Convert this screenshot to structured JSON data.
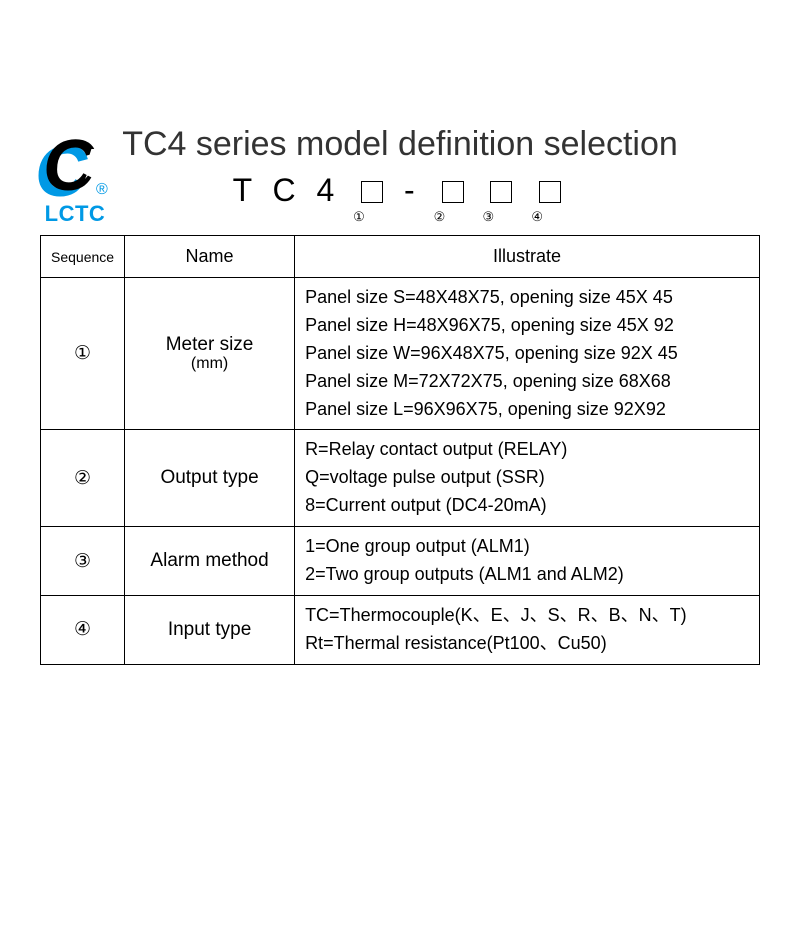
{
  "logo": {
    "text": "LCTC",
    "reg": "®"
  },
  "title": "TC4 series model definition selection",
  "model": {
    "prefix": "T C 4",
    "dash": "-",
    "subs": [
      "①",
      "②",
      "③",
      "④"
    ]
  },
  "table": {
    "headers": [
      "Sequence",
      "Name",
      "Illustrate"
    ],
    "rows": [
      {
        "seq": "①",
        "name": "Meter size",
        "name_sub": "(mm)",
        "lines": [
          "Panel size S=48X48X75, opening size 45X 45",
          "Panel size H=48X96X75, opening size 45X 92",
          "Panel size W=96X48X75, opening size 92X 45",
          "Panel size M=72X72X75, opening size 68X68",
          "Panel size L=96X96X75, opening size 92X92"
        ]
      },
      {
        "seq": "②",
        "name": "Output type",
        "name_sub": "",
        "lines": [
          "R=Relay contact output (RELAY)",
          "Q=voltage pulse output (SSR)",
          "8=Current output (DC4-20mA)"
        ]
      },
      {
        "seq": "③",
        "name": "Alarm method",
        "name_sub": "",
        "lines": [
          "1=One group output (ALM1)",
          "2=Two group outputs (ALM1 and ALM2)"
        ]
      },
      {
        "seq": "④",
        "name": "Input type",
        "name_sub": "",
        "lines": [
          "TC=Thermocouple(K、E、J、S、R、B、N、T)",
          "Rt=Thermal resistance(Pt100、Cu50)"
        ]
      }
    ]
  },
  "colors": {
    "brand_blue": "#0099e5",
    "text": "#000000",
    "border": "#000000",
    "background": "#ffffff"
  }
}
